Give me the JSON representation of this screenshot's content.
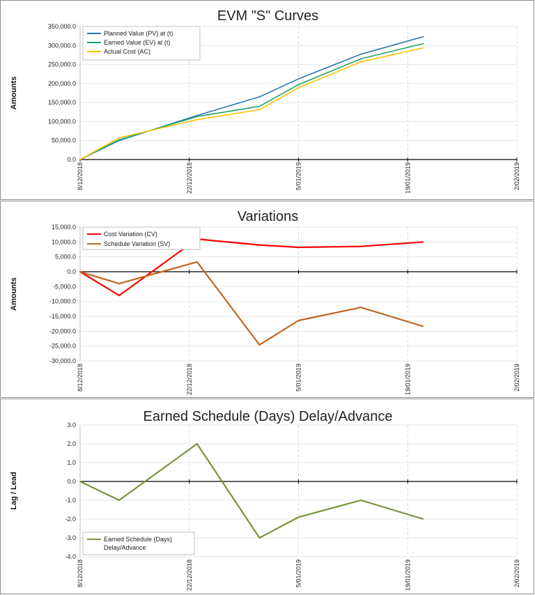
{
  "x_tick_labels": [
    "8/12/2018",
    "22/12/2018",
    "5/01/2019",
    "19/01/2019",
    "2/02/2019"
  ],
  "chart_data": [
    {
      "type": "line",
      "title": "EVM \"S\" Curves",
      "ylabel": "Amounts",
      "xlabel": "",
      "x": [
        "2018-12-08",
        "2018-12-13",
        "2018-12-23",
        "2018-12-31",
        "2019-01-05",
        "2019-01-13",
        "2019-01-21"
      ],
      "x_range": [
        "2018-12-08",
        "2019-02-02"
      ],
      "ylim": [
        0,
        350000
      ],
      "y_tick_labels": [
        "0.0",
        "50,000.0",
        "100,000.0",
        "150,000.0",
        "200,000.0",
        "250,000.0",
        "300,000.0",
        "350,000.0"
      ],
      "grid": true,
      "legend_position": "top-left",
      "series": [
        {
          "name": "Planned Value (PV) at (t)",
          "color": "#2e75b6",
          "values": [
            0,
            50000,
            116000,
            165000,
            212000,
            277000,
            323000
          ]
        },
        {
          "name": "Earned Value (EV) at (t)",
          "color": "#21a366",
          "values": [
            0,
            52000,
            113000,
            140000,
            197000,
            265000,
            305000
          ]
        },
        {
          "name": "Actual Cost (AC)",
          "color": "#ffc000",
          "values": [
            0,
            57000,
            105000,
            131000,
            189000,
            257000,
            294000
          ]
        }
      ]
    },
    {
      "type": "line",
      "title": "Variations",
      "ylabel": "Amounts",
      "xlabel": "",
      "x": [
        "2018-12-08",
        "2018-12-13",
        "2018-12-23",
        "2018-12-31",
        "2019-01-05",
        "2019-01-13",
        "2019-01-21"
      ],
      "x_range": [
        "2018-12-08",
        "2019-02-02"
      ],
      "ylim": [
        -30000,
        15000
      ],
      "y_tick_labels": [
        "15,000.0",
        "10,000.0",
        "5,000.0",
        "0.0",
        "-5,000.0",
        "-10,000.0",
        "-15,000.0",
        "-20,000.0",
        "-25,000.0",
        "-30,000.0"
      ],
      "grid": true,
      "legend_position": "top-left",
      "series": [
        {
          "name": "Cost Variation (CV)",
          "color": "#ff0000",
          "values": [
            0,
            -8000,
            11000,
            9000,
            8200,
            8500,
            10000
          ]
        },
        {
          "name": "Schedule Variation (SV)",
          "color": "#c0651e",
          "values": [
            0,
            -4000,
            3300,
            -24600,
            -16400,
            -12000,
            -18400
          ]
        }
      ]
    },
    {
      "type": "line",
      "title": "Earned Schedule (Days) Delay/Advance",
      "ylabel": "Lag / Lead",
      "xlabel": "",
      "x": [
        "2018-12-08",
        "2018-12-13",
        "2018-12-23",
        "2018-12-31",
        "2019-01-05",
        "2019-01-13",
        "2019-01-21"
      ],
      "x_range": [
        "2018-12-08",
        "2019-02-02"
      ],
      "ylim": [
        -4,
        3
      ],
      "y_tick_labels": [
        "3.0",
        "2.0",
        "1.0",
        "0.0",
        "-1.0",
        "-2.0",
        "-3.0",
        "-4.0"
      ],
      "grid": true,
      "legend_position": "bottom-left",
      "series": [
        {
          "name": "Earned Schedule (Days) Delay/Advance",
          "color": "#77933c",
          "values": [
            0,
            -1,
            2,
            -3,
            -1.9,
            -1,
            -2
          ]
        }
      ]
    }
  ]
}
